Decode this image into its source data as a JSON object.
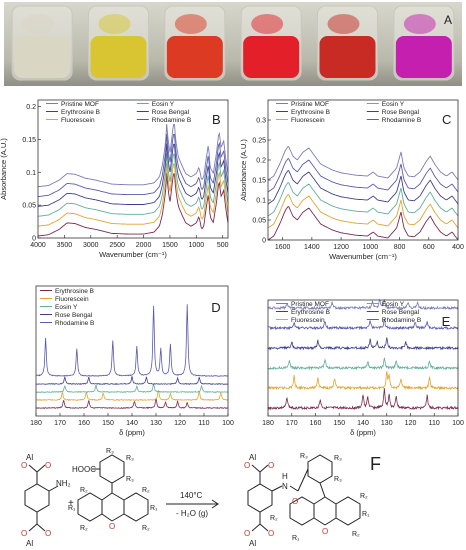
{
  "panel_labels": {
    "a": "A",
    "b": "B",
    "c": "C",
    "d": "D",
    "e": "E",
    "f": "F"
  },
  "photo": {
    "vial_colors": [
      "#d9d6c4",
      "#d8c531",
      "#dc3a22",
      "#e31f2a",
      "#c82b24",
      "#c41fae"
    ]
  },
  "colors": {
    "pristine": "#7b7bb8",
    "erythrosine": "#7a2a4e",
    "fluorescein": "#e0a530",
    "eosin": "#5fae9a",
    "rose": "#3f3f8c",
    "rhodamine": "#5a5ab0",
    "text": "#222222"
  },
  "chart_data": [
    {
      "id": "B",
      "type": "line",
      "title": "",
      "xlabel": "Wavenumber (cm⁻¹)",
      "ylabel": "Absorbance (A.U.)",
      "xlim": [
        4000,
        400
      ],
      "ylim": [
        0,
        0.21
      ],
      "x_ticks": [
        4000,
        3500,
        3000,
        2500,
        2000,
        1500,
        1000,
        500
      ],
      "y_ticks": [
        0,
        0.05,
        0.1,
        0.15,
        0.2
      ],
      "y_tick_labels": [
        "0",
        "0.05",
        "0.1",
        "0.15",
        "0.2"
      ],
      "legend": [
        "Pristine MOF",
        "Eosin Y",
        "Erythrosine B",
        "Rose Bengal",
        "Fluorescein",
        "Rhodamine B"
      ],
      "legend_position": "top",
      "series": [
        {
          "name": "Pristine MOF",
          "offset": 0.078,
          "scale": 1.0
        },
        {
          "name": "Erythrosine B",
          "offset": 0.003,
          "scale": 1.0
        },
        {
          "name": "Fluorescein",
          "offset": 0.018,
          "scale": 1.0
        },
        {
          "name": "Eosin Y",
          "offset": 0.033,
          "scale": 1.0
        },
        {
          "name": "Rose Bengal",
          "offset": 0.048,
          "scale": 1.0
        },
        {
          "name": "Rhodamine B",
          "offset": 0.063,
          "scale": 1.0
        }
      ],
      "base_profile": [
        [
          4000,
          0.0
        ],
        [
          3800,
          0.002
        ],
        [
          3600,
          0.01
        ],
        [
          3450,
          0.02
        ],
        [
          3300,
          0.019
        ],
        [
          3100,
          0.013
        ],
        [
          2900,
          0.01
        ],
        [
          2600,
          0.004
        ],
        [
          2300,
          0.003
        ],
        [
          2000,
          0.003
        ],
        [
          1800,
          0.006
        ],
        [
          1700,
          0.015
        ],
        [
          1650,
          0.03
        ],
        [
          1620,
          0.045
        ],
        [
          1580,
          0.07
        ],
        [
          1560,
          0.098
        ],
        [
          1540,
          0.075
        ],
        [
          1500,
          0.05
        ],
        [
          1450,
          0.085
        ],
        [
          1420,
          0.1
        ],
        [
          1390,
          0.07
        ],
        [
          1340,
          0.045
        ],
        [
          1260,
          0.03
        ],
        [
          1200,
          0.02
        ],
        [
          1100,
          0.015
        ],
        [
          1000,
          0.02
        ],
        [
          950,
          0.03
        ],
        [
          900,
          0.01
        ],
        [
          860,
          0.015
        ],
        [
          800,
          0.05
        ],
        [
          770,
          0.065
        ],
        [
          740,
          0.03
        ],
        [
          680,
          0.02
        ],
        [
          620,
          0.05
        ],
        [
          570,
          0.085
        ],
        [
          530,
          0.06
        ],
        [
          480,
          0.07
        ],
        [
          440,
          0.04
        ],
        [
          400,
          0.02
        ]
      ]
    },
    {
      "id": "C",
      "type": "line",
      "title": "",
      "xlabel": "Wavenumber (cm⁻¹)",
      "ylabel": "Absorbance (A.U.)",
      "xlim": [
        1700,
        400
      ],
      "ylim": [
        0,
        0.35
      ],
      "x_ticks": [
        1600,
        1400,
        1200,
        1000,
        800,
        600,
        400
      ],
      "y_ticks": [
        0,
        0.05,
        0.1,
        0.15,
        0.2,
        0.25,
        0.3
      ],
      "y_tick_labels": [
        "0",
        "0.05",
        "0.1",
        "0.15",
        "0.2",
        "0.25",
        "0.3"
      ],
      "legend": [
        "Pristine MOF",
        "Eosin Y",
        "Erythrosine B",
        "Rose Bengal",
        "Fluorescein",
        "Rhodamine B"
      ],
      "legend_position": "top",
      "series": [
        {
          "name": "Pristine MOF",
          "offset": 0.15,
          "scale": 1.0
        },
        {
          "name": "Erythrosine B",
          "offset": 0.0,
          "scale": 1.0
        },
        {
          "name": "Fluorescein",
          "offset": 0.03,
          "scale": 1.0
        },
        {
          "name": "Eosin Y",
          "offset": 0.06,
          "scale": 1.0
        },
        {
          "name": "Rose Bengal",
          "offset": 0.09,
          "scale": 1.0
        },
        {
          "name": "Rhodamine B",
          "offset": 0.12,
          "scale": 1.0
        }
      ],
      "base_profile": [
        [
          1700,
          0.0
        ],
        [
          1660,
          0.01
        ],
        [
          1620,
          0.04
        ],
        [
          1580,
          0.075
        ],
        [
          1560,
          0.085
        ],
        [
          1530,
          0.06
        ],
        [
          1500,
          0.05
        ],
        [
          1460,
          0.07
        ],
        [
          1420,
          0.08
        ],
        [
          1380,
          0.06
        ],
        [
          1340,
          0.04
        ],
        [
          1260,
          0.025
        ],
        [
          1200,
          0.018
        ],
        [
          1150,
          0.015
        ],
        [
          1100,
          0.012
        ],
        [
          1020,
          0.01
        ],
        [
          980,
          0.02
        ],
        [
          950,
          0.01
        ],
        [
          880,
          0.005
        ],
        [
          820,
          0.03
        ],
        [
          790,
          0.07
        ],
        [
          770,
          0.03
        ],
        [
          740,
          0.01
        ],
        [
          700,
          0.008
        ],
        [
          660,
          0.02
        ],
        [
          620,
          0.045
        ],
        [
          590,
          0.06
        ],
        [
          560,
          0.04
        ],
        [
          520,
          0.02
        ],
        [
          480,
          0.01
        ],
        [
          440,
          0.02
        ],
        [
          400,
          0.0
        ]
      ]
    },
    {
      "id": "D",
      "type": "line",
      "title": "",
      "xlabel": "δ (ppm)",
      "ylabel": "",
      "xlim": [
        180,
        100
      ],
      "x_ticks": [
        180,
        170,
        160,
        150,
        140,
        130,
        120,
        110,
        100
      ],
      "legend": [
        "Erythrosine B",
        "Fluorescein",
        "Eosin Y",
        "Rose Bengal",
        "Rhodamine B"
      ],
      "legend_position": "top-left",
      "series": [
        {
          "name": "Erythrosine B",
          "level": 0,
          "peaks": [
            [
              168.5,
              2.0
            ],
            [
              158,
              1.8
            ],
            [
              139,
              1.6
            ],
            [
              130,
              2.2
            ],
            [
              126,
              1.4
            ],
            [
              121,
              1.5
            ],
            [
              117,
              1.2
            ]
          ]
        },
        {
          "name": "Fluorescein",
          "level": 1,
          "peaks": [
            [
              169,
              1.8
            ],
            [
              159,
              2.0
            ],
            [
              152,
              1.6
            ],
            [
              129,
              2.4
            ],
            [
              124,
              1.6
            ],
            [
              112,
              2.0
            ],
            [
              103,
              1.8
            ]
          ]
        },
        {
          "name": "Eosin Y",
          "level": 2,
          "peaks": [
            [
              168,
              1.5
            ],
            [
              155,
              1.6
            ],
            [
              138,
              1.4
            ],
            [
              131,
              2.0
            ],
            [
              111,
              1.4
            ]
          ]
        },
        {
          "name": "Rose Bengal",
          "level": 3,
          "peaks": [
            [
              168,
              1.7
            ],
            [
              158,
              1.6
            ],
            [
              140,
              1.8
            ],
            [
              134,
              1.6
            ],
            [
              121,
              1.4
            ],
            [
              112,
              1.6
            ]
          ]
        },
        {
          "name": "Rhodamine B",
          "level": 4,
          "peaks": [
            [
              176,
              9.0
            ],
            [
              163,
              6.5
            ],
            [
              148,
              8.5
            ],
            [
              138,
              7.0
            ],
            [
              131,
              16.5
            ],
            [
              128,
              6.5
            ],
            [
              124,
              7.5
            ],
            [
              117,
              17.0
            ]
          ]
        }
      ]
    },
    {
      "id": "E",
      "type": "line",
      "title": "",
      "xlabel": "δ (ppm)",
      "ylabel": "",
      "xlim": [
        180,
        100
      ],
      "x_ticks": [
        180,
        170,
        160,
        150,
        140,
        130,
        120,
        110,
        100
      ],
      "legend": [
        "Pristine MOF",
        "Eosin Y",
        "Erythrosine B",
        "Rose Bengal",
        "Fluorescein",
        "Rhodamine B"
      ],
      "legend_position": "top",
      "series": [
        {
          "name": "Erythrosine B",
          "level": 0,
          "peaks": [
            [
              172,
              2.6
            ],
            [
              158,
              2.0
            ],
            [
              140,
              3.0
            ],
            [
              138,
              2.6
            ],
            [
              131,
              4.5
            ],
            [
              129,
              3.4
            ],
            [
              126,
              2.8
            ],
            [
              113,
              3.0
            ]
          ]
        },
        {
          "name": "Fluorescein",
          "level": 1,
          "peaks": [
            [
              169,
              2.8
            ],
            [
              159,
              2.6
            ],
            [
              152,
              2.2
            ],
            [
              130,
              3.5
            ],
            [
              129,
              3.0
            ],
            [
              124,
              2.4
            ],
            [
              112,
              2.4
            ]
          ]
        },
        {
          "name": "Eosin Y",
          "level": 2,
          "peaks": [
            [
              171,
              1.8
            ],
            [
              156,
              2.2
            ],
            [
              138,
              1.6
            ],
            [
              131,
              2.6
            ],
            [
              126,
              1.6
            ],
            [
              112,
              1.8
            ]
          ]
        },
        {
          "name": "Rose Bengal",
          "level": 3,
          "peaks": [
            [
              170,
              1.6
            ],
            [
              159,
              1.8
            ],
            [
              137,
              2.2
            ],
            [
              134,
              1.4
            ],
            [
              130,
              2.4
            ],
            [
              122,
              1.4
            ]
          ]
        },
        {
          "name": "Rhodamine B",
          "level": 4,
          "peaks": [
            [
              169,
              1.4
            ],
            [
              156,
              1.6
            ],
            [
              137,
              1.6
            ],
            [
              131,
              2.0
            ],
            [
              118,
              1.4
            ],
            [
              113,
              1.6
            ]
          ]
        },
        {
          "name": "Pristine MOF",
          "level": 5,
          "peaks": [
            [
              172,
              1.2
            ],
            [
              153,
              1.4
            ],
            [
              136,
              1.4
            ],
            [
              133,
              2.0
            ],
            [
              131,
              1.8
            ],
            [
              121,
              1.4
            ],
            [
              117,
              1.2
            ]
          ]
        }
      ]
    }
  ],
  "scheme": {
    "conditions_top": "140°C",
    "conditions_bottom": "- H₂O (g)",
    "plus": "+",
    "reactant1": {
      "al_top": "Al",
      "al_bottom": "Al",
      "o": "O",
      "nh2": "NH₂"
    },
    "reactant2": {
      "cooh": "HOOC",
      "r1": "R₁",
      "r2": "R₂",
      "r3": "R₃",
      "o": "O"
    },
    "product": {
      "al_top": "Al",
      "al_bottom": "Al",
      "o": "O",
      "nh": "N",
      "h": "H",
      "r1": "R₁",
      "r2": "R₂",
      "r3": "R₃"
    }
  }
}
